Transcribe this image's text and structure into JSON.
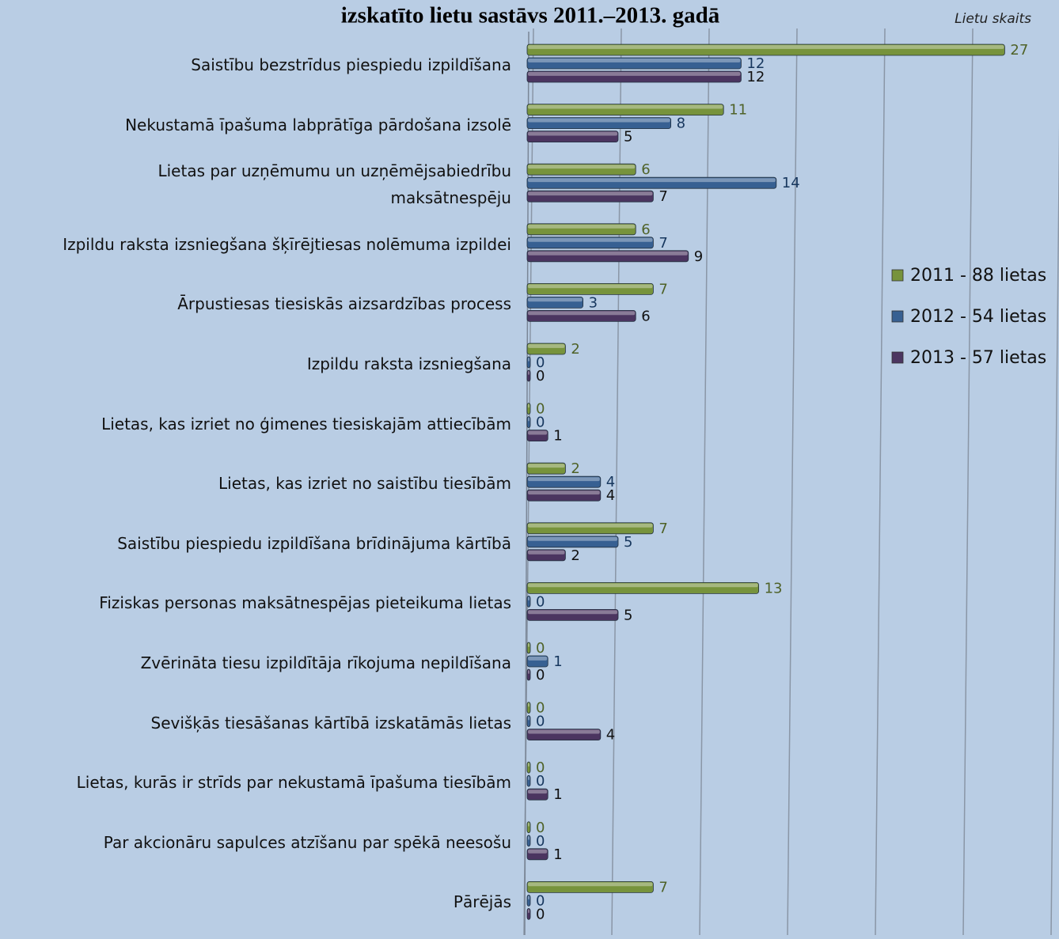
{
  "chart_data": {
    "type": "bar",
    "orientation": "horizontal",
    "title": "izskatīto lietu sastāvs 2011.–2013. gadā",
    "x_label": "Lietu skaits",
    "categories": [
      "Saistību bezstrīdus piespiedu izpildīšana",
      "Nekustamā īpašuma labprātīga pārdošana izsolē",
      "Lietas par uzņēmumu  un uzņēmējsabiedrību\nmaksātnespēju",
      "Izpildu raksta izsniegšana šķīrējtiesas nolēmuma izpildei",
      "Ārpustiesas tiesiskās aizsardzības process",
      "Izpildu raksta izsniegšana",
      "Lietas, kas izriet no ģimenes tiesiskajām attiecībām",
      "Lietas, kas izriet no saistību tiesībām",
      "Saistību piespiedu izpildīšana brīdinājuma kārtībā",
      "Fiziskas personas maksātnespējas pieteikuma lietas",
      "Zvērināta tiesu izpildītāja rīkojuma nepildīšana",
      "Sevišķās tiesāšanas kārtībā izskatāmās lietas",
      "Lietas, kurās ir strīds par nekustamā īpašuma tiesībām",
      "Par akcionāru sapulces atzīšanu par spēkā neesošu",
      "Pārējās"
    ],
    "series": [
      {
        "name": "2011 - 88 lietas",
        "color": "#77933c",
        "label_color": "#4f6228",
        "values": [
          27,
          11,
          6,
          6,
          7,
          2,
          0,
          2,
          7,
          13,
          0,
          0,
          0,
          0,
          7
        ]
      },
      {
        "name": "2012 - 54 lietas",
        "color": "#376092",
        "label_color": "#17375e",
        "values": [
          12,
          8,
          14,
          7,
          3,
          0,
          0,
          4,
          5,
          0,
          1,
          0,
          0,
          0,
          0
        ]
      },
      {
        "name": "2013 - 57 lietas",
        "color": "#4b3560",
        "label_color": "#111111",
        "values": [
          12,
          5,
          7,
          9,
          6,
          0,
          1,
          4,
          2,
          5,
          0,
          4,
          1,
          1,
          0
        ]
      }
    ],
    "xlim": [
      0,
      30
    ],
    "xticks": [
      0,
      5,
      10,
      15,
      20,
      25,
      30
    ],
    "grid": true,
    "legend": "right"
  }
}
